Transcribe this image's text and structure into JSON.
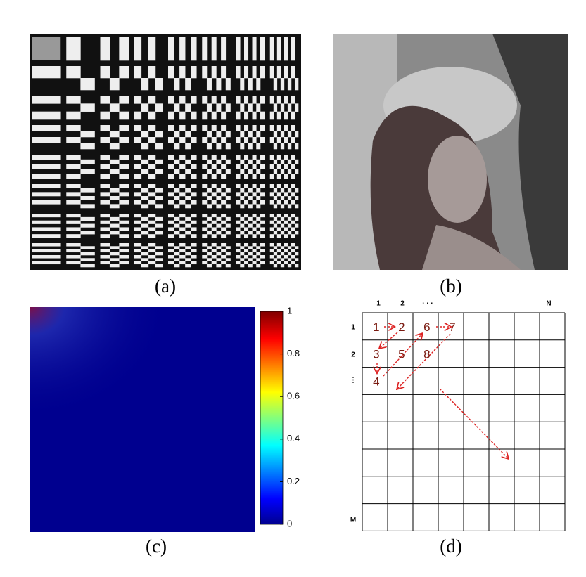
{
  "panels": {
    "a": {
      "caption": "(a)"
    },
    "b": {
      "caption": "(b)"
    },
    "c": {
      "caption": "(c)",
      "colorbar": {
        "ticks": [
          0,
          0.2,
          0.4,
          0.6,
          0.8,
          1
        ],
        "range": [
          0,
          1
        ]
      }
    },
    "d": {
      "caption": "(d)",
      "column_labels": [
        "1",
        "2",
        "· · ·",
        "N"
      ],
      "row_labels": [
        "1",
        "2",
        "⋮",
        "M"
      ],
      "cells": [
        "1",
        "2",
        "3",
        "4",
        "5",
        "6",
        "7",
        "8"
      ]
    }
  }
}
